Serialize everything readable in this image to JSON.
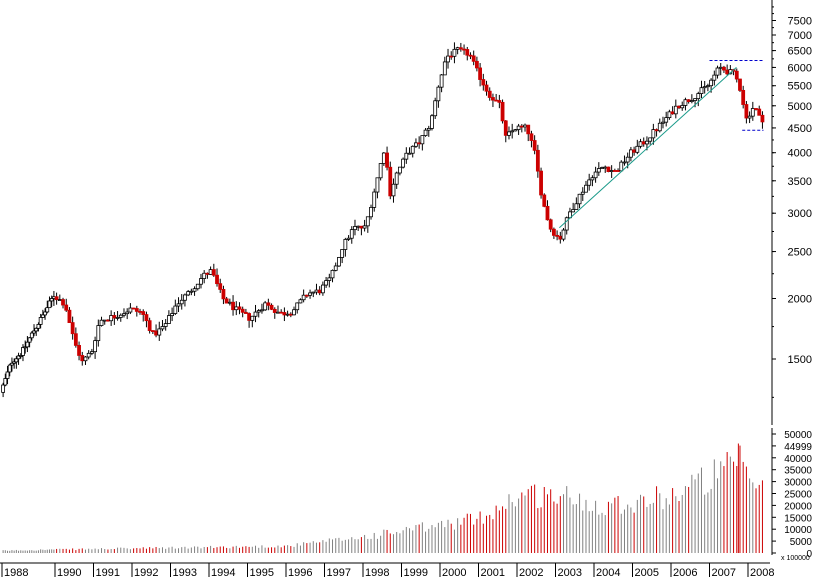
{
  "chart_data": {
    "type": "candlestick",
    "price_axis": {
      "scale": "log",
      "ticks": [
        1500,
        2000,
        2500,
        3000,
        3500,
        4000,
        4500,
        5000,
        5500,
        6000,
        6500,
        7000,
        7500
      ],
      "tick_labels": [
        "1500",
        "2000",
        "2500",
        "3000",
        "3500",
        "4000",
        "4500",
        "5000",
        "5500",
        "6000",
        "6500",
        "7000",
        "7500"
      ]
    },
    "volume_axis": {
      "scale": "linear",
      "ticks": [
        0,
        5000,
        10000,
        15000,
        20000,
        25000,
        30000,
        35000,
        40000,
        44999,
        50000
      ],
      "tick_labels": [
        "0",
        "5000",
        "10000",
        "15000",
        "20000",
        "25000",
        "30000",
        "35000",
        "40000",
        "44999",
        "50000"
      ],
      "unit_label": "x 100000"
    },
    "x_axis": {
      "tick_labels": [
        "1988",
        "1990",
        "1991",
        "1992",
        "1993",
        "1994",
        "1995",
        "1996",
        "1997",
        "1998",
        "1999",
        "2000",
        "2001",
        "2002",
        "2003",
        "2004",
        "2005",
        "2006",
        "2007",
        "2008"
      ]
    },
    "price_path": [
      [
        1988.0,
        1280
      ],
      [
        1988.4,
        1480
      ],
      [
        1988.8,
        1550
      ],
      [
        1989.2,
        1700
      ],
      [
        1989.6,
        1850
      ],
      [
        1990.0,
        2030
      ],
      [
        1990.3,
        1950
      ],
      [
        1990.55,
        1620
      ],
      [
        1990.75,
        1480
      ],
      [
        1991.0,
        1560
      ],
      [
        1991.2,
        1800
      ],
      [
        1991.6,
        1840
      ],
      [
        1992.0,
        1900
      ],
      [
        1992.3,
        1870
      ],
      [
        1992.6,
        1680
      ],
      [
        1992.9,
        1760
      ],
      [
        1993.2,
        1950
      ],
      [
        1993.5,
        2050
      ],
      [
        1993.9,
        2230
      ],
      [
        1994.1,
        2280
      ],
      [
        1994.4,
        2000
      ],
      [
        1994.8,
        1880
      ],
      [
        1995.1,
        1820
      ],
      [
        1995.5,
        1950
      ],
      [
        1995.9,
        1860
      ],
      [
        1996.2,
        1880
      ],
      [
        1996.6,
        2050
      ],
      [
        1996.9,
        2070
      ],
      [
        1997.2,
        2200
      ],
      [
        1997.5,
        2550
      ],
      [
        1997.8,
        2800
      ],
      [
        1998.1,
        2800
      ],
      [
        1998.4,
        3500
      ],
      [
        1998.6,
        4100
      ],
      [
        1998.75,
        3300
      ],
      [
        1998.9,
        3600
      ],
      [
        1999.2,
        4000
      ],
      [
        1999.5,
        4200
      ],
      [
        1999.8,
        4600
      ],
      [
        2000.0,
        5500
      ],
      [
        2000.2,
        6300
      ],
      [
        2000.5,
        6500
      ],
      [
        2000.8,
        6400
      ],
      [
        2001.0,
        5900
      ],
      [
        2001.3,
        5300
      ],
      [
        2001.6,
        5000
      ],
      [
        2001.75,
        4300
      ],
      [
        2002.0,
        4500
      ],
      [
        2002.3,
        4500
      ],
      [
        2002.5,
        4000
      ],
      [
        2002.7,
        3200
      ],
      [
        2002.9,
        2800
      ],
      [
        2003.15,
        2650
      ],
      [
        2003.4,
        3000
      ],
      [
        2003.7,
        3300
      ],
      [
        2004.0,
        3600
      ],
      [
        2004.3,
        3750
      ],
      [
        2004.6,
        3650
      ],
      [
        2005.0,
        4000
      ],
      [
        2005.4,
        4250
      ],
      [
        2005.8,
        4600
      ],
      [
        2006.2,
        5000
      ],
      [
        2006.6,
        5200
      ],
      [
        2007.0,
        5500
      ],
      [
        2007.3,
        6000
      ],
      [
        2007.5,
        5900
      ],
      [
        2007.7,
        5800
      ],
      [
        2007.85,
        5400
      ],
      [
        2008.0,
        4700
      ],
      [
        2008.2,
        5000
      ],
      [
        2008.35,
        4700
      ]
    ],
    "volume_envelope": [
      [
        1988.0,
        1000
      ],
      [
        1996.0,
        3000
      ],
      [
        1998.0,
        7000
      ],
      [
        2000.0,
        12000
      ],
      [
        2001.0,
        15000
      ],
      [
        2002.0,
        25000
      ],
      [
        2003.0,
        25000
      ],
      [
        2004.0,
        21000
      ],
      [
        2005.0,
        22000
      ],
      [
        2006.0,
        25000
      ],
      [
        2007.0,
        33000
      ],
      [
        2007.75,
        38000
      ],
      [
        2008.3,
        27000
      ]
    ],
    "volume_peak": [
      2007.75,
      46000
    ],
    "reference_lines": [
      {
        "style": "dashed",
        "color": "#0000cc",
        "y": 6200,
        "x": [
          2007.0,
          2008.35
        ]
      },
      {
        "style": "dashed",
        "color": "#0000cc",
        "y": 4450,
        "x": [
          2007.85,
          2008.35
        ]
      }
    ],
    "trendline": {
      "color": "#1a9a8a",
      "from": [
        2003.1,
        2800
      ],
      "to": [
        2007.7,
        6000
      ]
    },
    "colors": {
      "up": "#ffffff",
      "down": "#cc0000",
      "outline": "#000000",
      "volume_up": "#808080",
      "volume_down": "#cc0000"
    },
    "grid": false
  }
}
